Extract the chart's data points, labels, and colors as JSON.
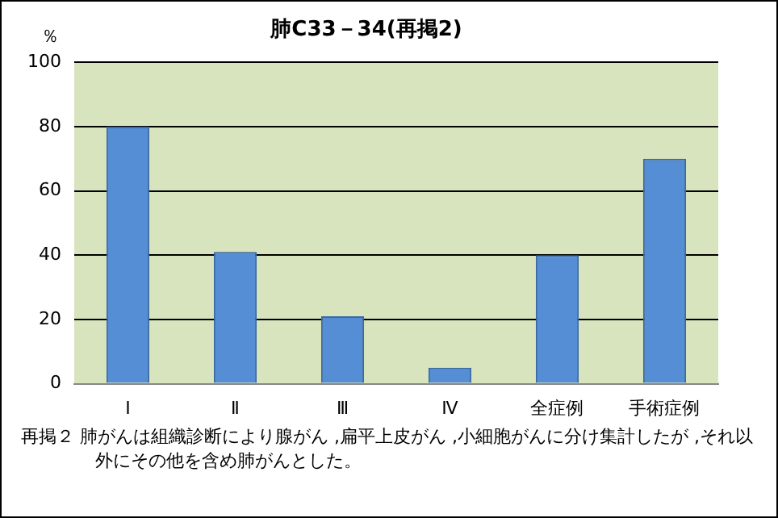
{
  "chart_data": {
    "type": "bar",
    "title": "肺C33－34(再掲2)",
    "ylabel": "％",
    "categories": [
      "Ⅰ",
      "Ⅱ",
      "Ⅲ",
      "Ⅳ",
      "全症例",
      "手術症例"
    ],
    "values": [
      80,
      41,
      21,
      5,
      40,
      70
    ],
    "color": "#558ed5",
    "ylim": [
      0,
      100
    ],
    "yticks": [
      0,
      20,
      40,
      60,
      80,
      100
    ],
    "grid": "y",
    "annotations": [
      "再掲２ 肺がんは組織診断により腺がん ,扁平上皮がん ,小細胞がんに分け集計したが ,それ以外にその他を含め肺がんとした。"
    ]
  }
}
